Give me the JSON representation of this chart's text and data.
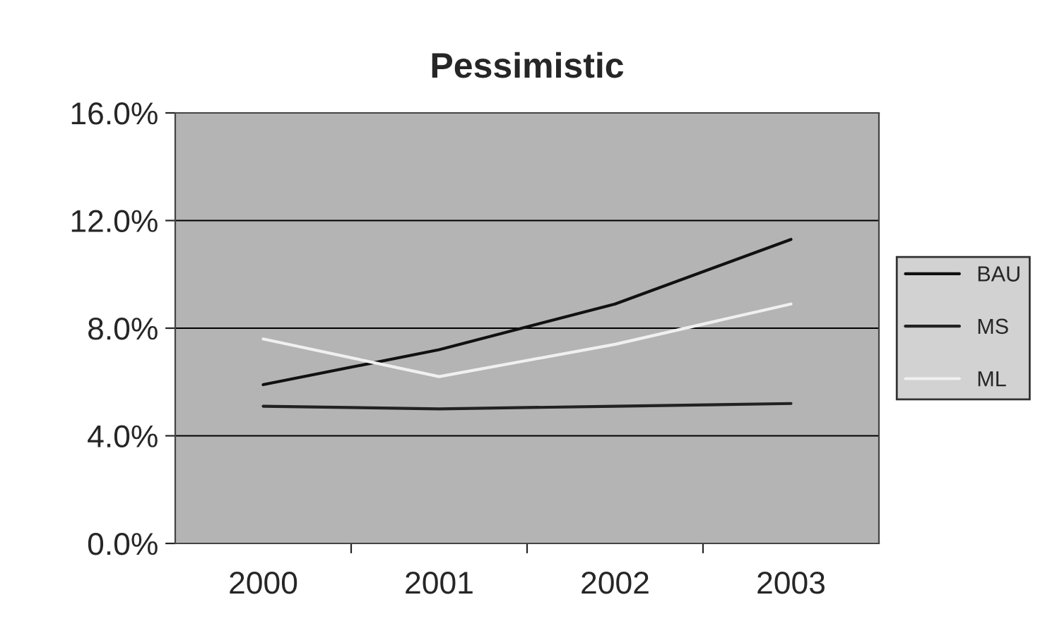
{
  "chart_data": {
    "type": "line",
    "title": "Pessimistic",
    "categories": [
      "2000",
      "2001",
      "2002",
      "2003"
    ],
    "series": [
      {
        "name": "BAU",
        "color": "#111111",
        "values": [
          5.9,
          7.2,
          8.9,
          11.3
        ]
      },
      {
        "name": "MS",
        "color": "#222222",
        "values": [
          5.1,
          5.0,
          5.1,
          5.2
        ]
      },
      {
        "name": "ML",
        "color": "#f0f0f0",
        "values": [
          7.6,
          6.2,
          7.4,
          8.9
        ]
      }
    ],
    "ylim": [
      0,
      16
    ],
    "yticks": [
      {
        "value": 0,
        "label": "0.0%"
      },
      {
        "value": 4,
        "label": "4.0%"
      },
      {
        "value": 8,
        "label": "8.0%"
      },
      {
        "value": 12,
        "label": "12.0%"
      },
      {
        "value": 16,
        "label": "16.0%"
      }
    ],
    "grid": "y",
    "legend": "right",
    "marker": "none",
    "line_style": "solid"
  }
}
